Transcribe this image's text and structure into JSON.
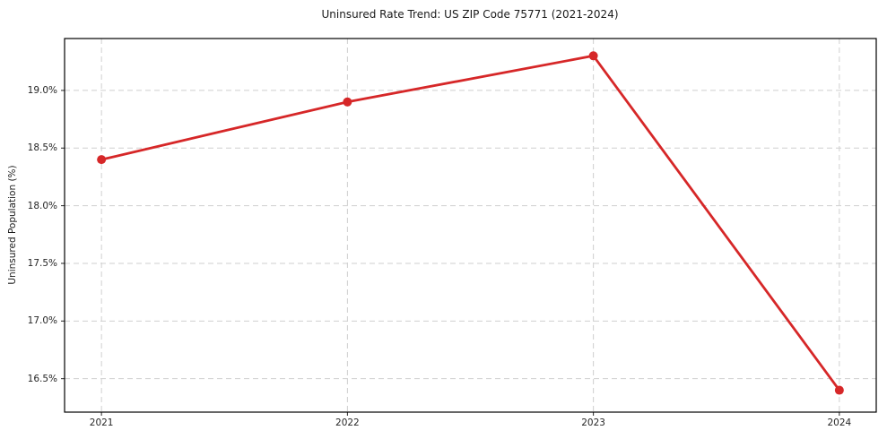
{
  "chart_data": {
    "type": "line",
    "title": "Uninsured Rate Trend: US ZIP Code 75771 (2021-2024)",
    "ylabel": "Uninsured Population (%)",
    "xlabel": "",
    "x": [
      2021,
      2022,
      2023,
      2024
    ],
    "values": [
      18.4,
      18.9,
      19.3,
      16.4
    ],
    "xtick_labels": [
      "2021",
      "2022",
      "2023",
      "2024"
    ],
    "ytick_values": [
      16.5,
      17.0,
      17.5,
      18.0,
      18.5,
      19.0
    ],
    "ytick_labels": [
      "16.5%",
      "17.0%",
      "17.5%",
      "18.0%",
      "18.5%",
      "19.0%"
    ],
    "xlim": [
      2020.85,
      2024.15
    ],
    "ylim": [
      16.21,
      19.45
    ],
    "grid": true,
    "legend_position": "none",
    "line_color": "#d62728",
    "marker": "circle",
    "background_color": "#ffffff",
    "grid_color": "#cfcfcf",
    "spine_color": "#000000"
  }
}
